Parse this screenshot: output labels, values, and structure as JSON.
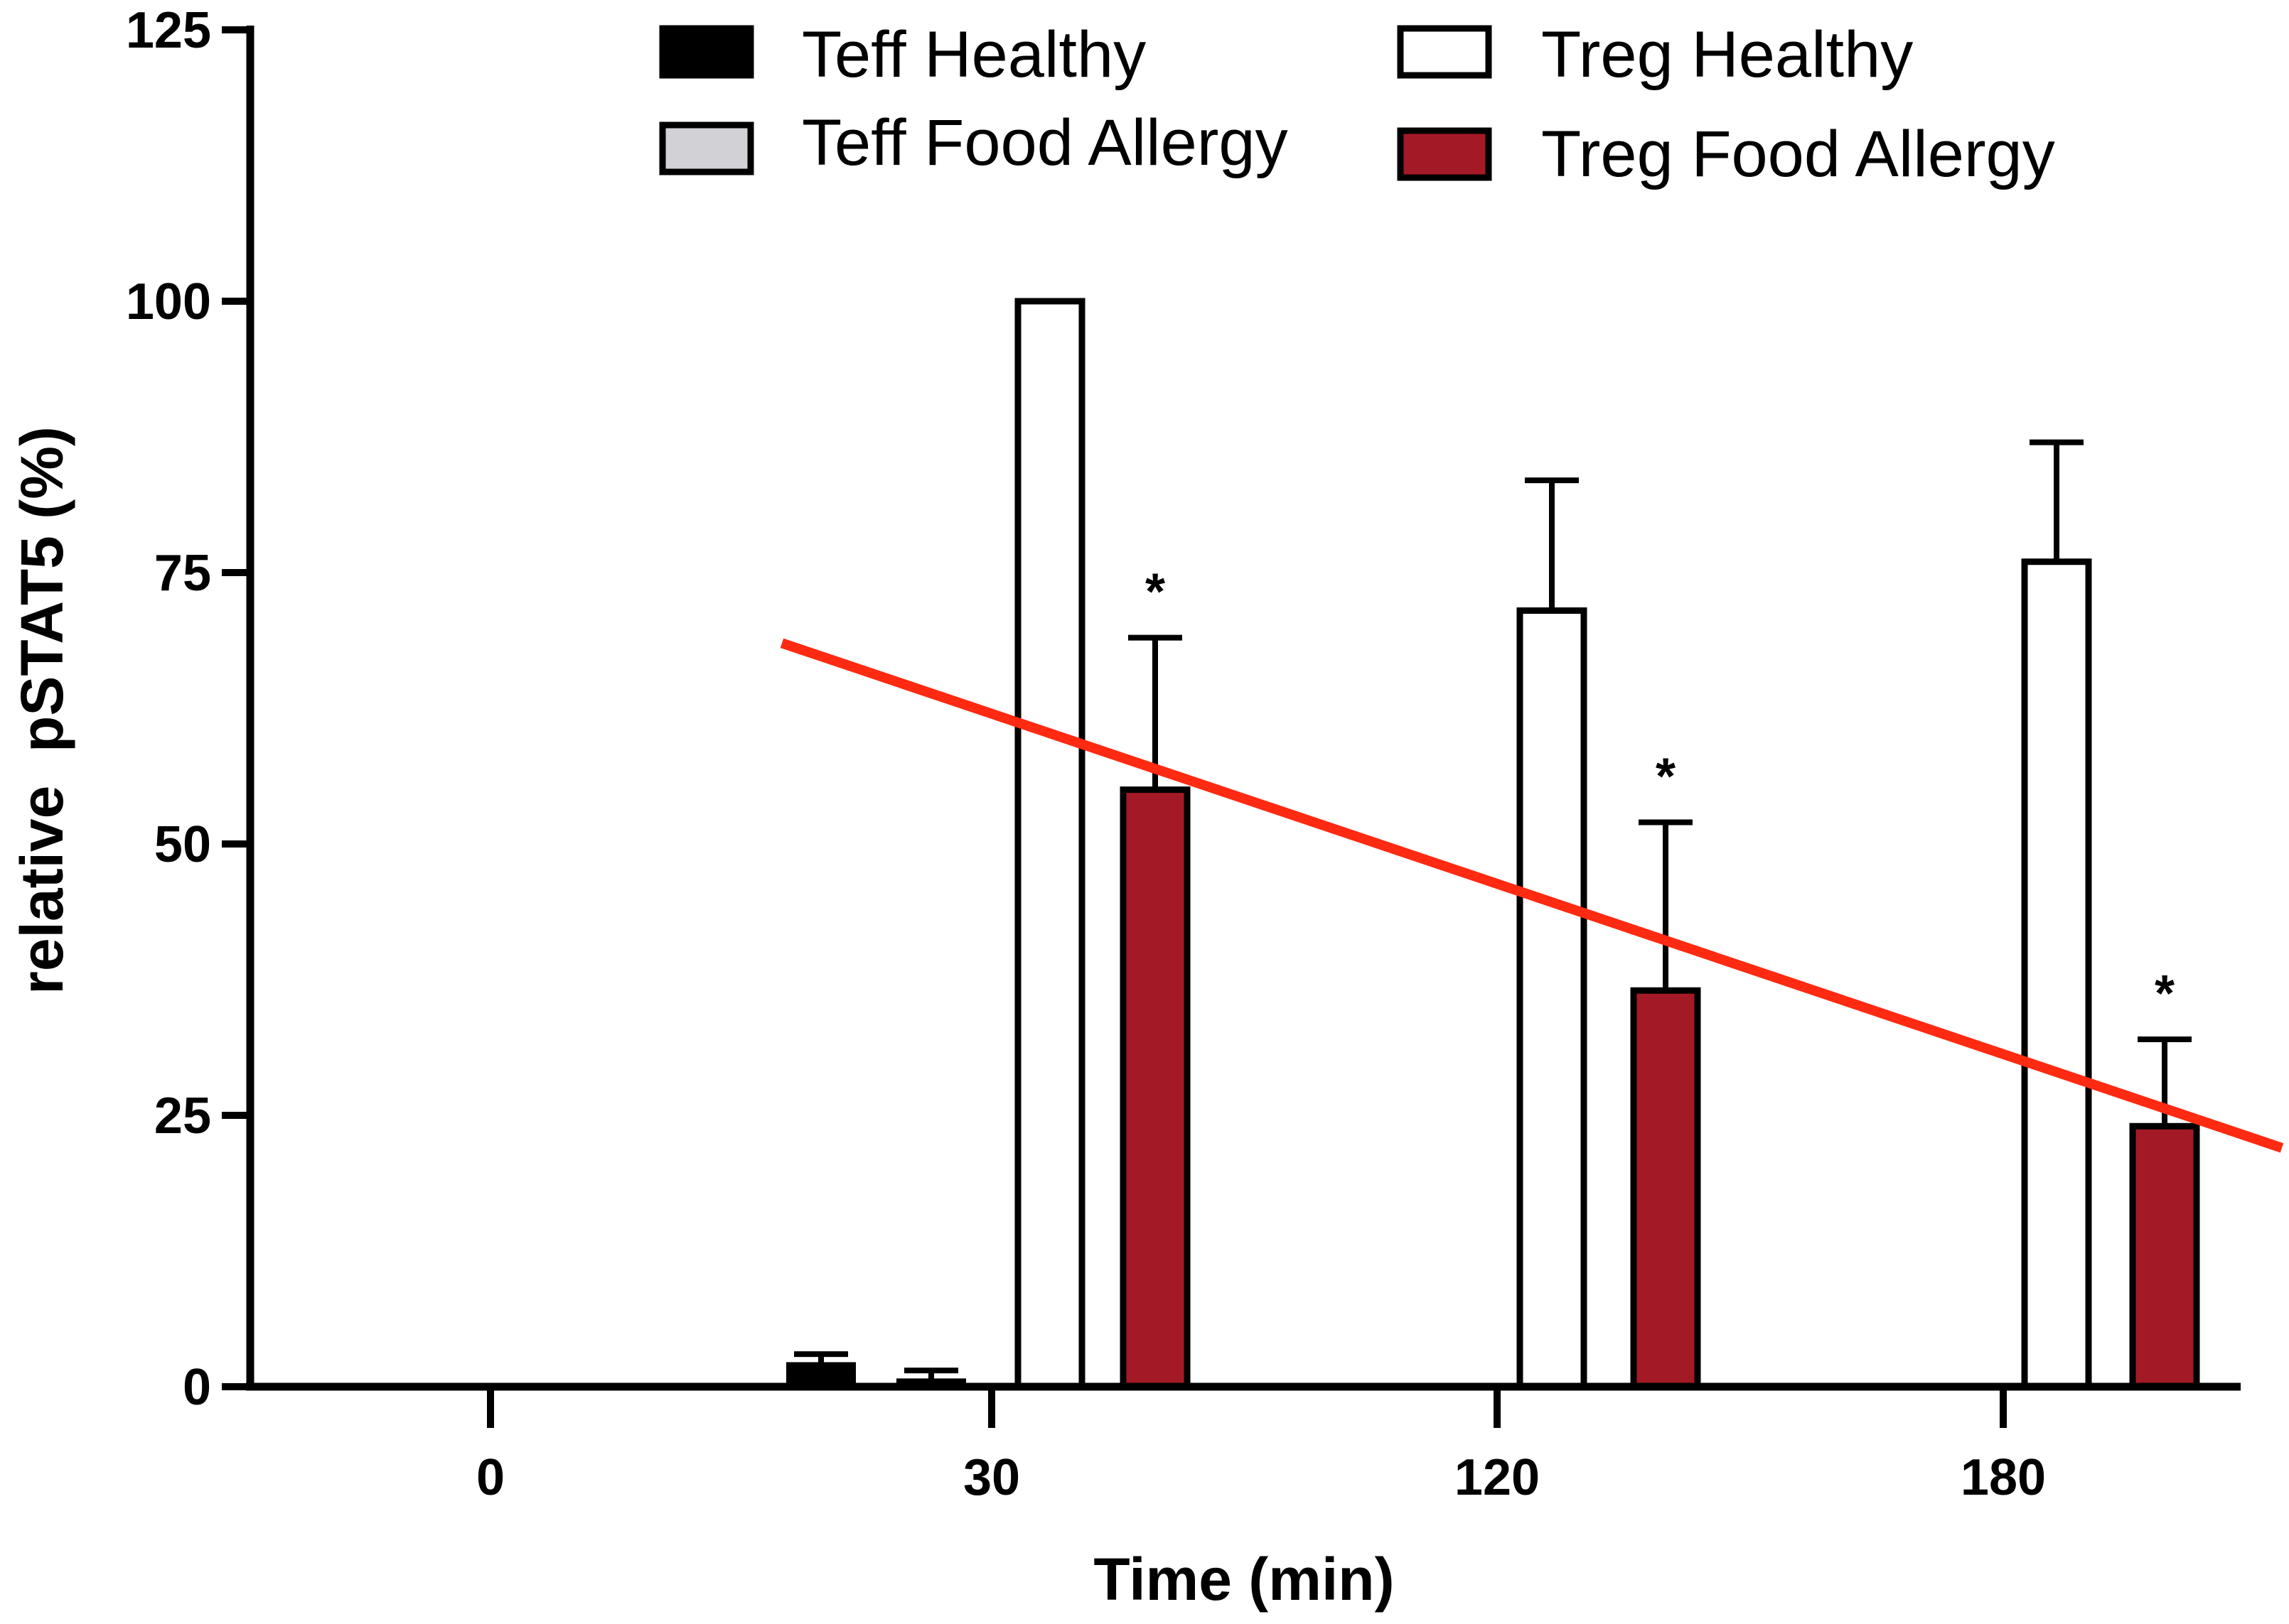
{
  "chart_data": {
    "type": "bar",
    "title": "",
    "xlabel": "Time (min)",
    "ylabel": "relative  pSTAT5 (%)",
    "ylim": [
      0,
      125
    ],
    "yticks": [
      0,
      25,
      50,
      75,
      100,
      125
    ],
    "categories": [
      "0",
      "30",
      "120",
      "180"
    ],
    "series": [
      {
        "name": "Teff Healthy",
        "color": "#000000",
        "values": [
          null,
          2,
          null,
          null
        ],
        "errors": [
          null,
          1,
          null,
          null
        ]
      },
      {
        "name": "Teff Food Allergy",
        "color": "#d1d1d6",
        "values": [
          null,
          0.5,
          null,
          null
        ],
        "errors": [
          null,
          1,
          null,
          null
        ]
      },
      {
        "name": "Treg Healthy",
        "color": "#ffffff",
        "values": [
          null,
          100,
          71.5,
          76
        ],
        "errors": [
          null,
          0,
          12,
          11
        ]
      },
      {
        "name": "Treg Food Allergy",
        "color": "#a31a26",
        "values": [
          null,
          55,
          36.5,
          24
        ],
        "errors": [
          null,
          14,
          15.5,
          8
        ]
      }
    ],
    "significance": [
      {
        "category": "30",
        "series": "Treg Food Allergy",
        "label": "*"
      },
      {
        "category": "120",
        "series": "Treg Food Allergy",
        "label": "*"
      },
      {
        "category": "180",
        "series": "Treg Food Allergy",
        "label": "*"
      }
    ],
    "trend_line": {
      "color": "#ff2a12",
      "y_start": 68.5,
      "y_end": 22
    },
    "legend": {
      "position": "top"
    }
  }
}
